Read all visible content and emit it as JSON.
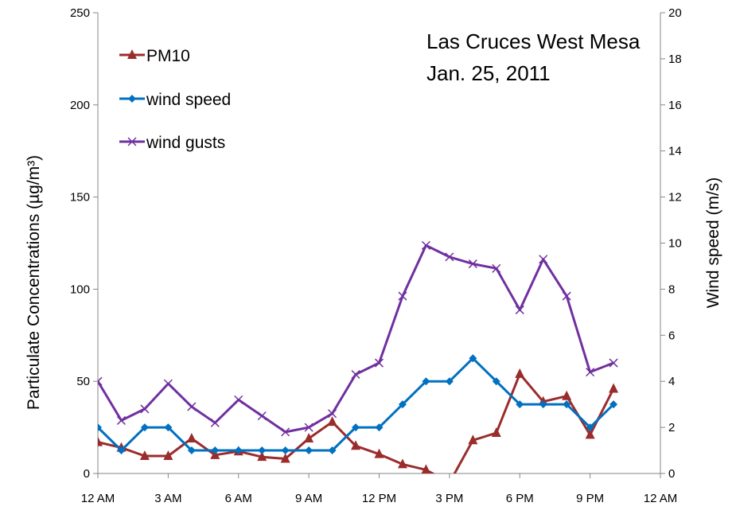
{
  "chart_data": {
    "type": "line",
    "title_lines": [
      "Las Cruces West Mesa",
      "Jan. 25, 2011"
    ],
    "ylabel": "Particulate Concentrations (µg/m³)",
    "y2label": "Wind speed (m/s)",
    "xlabel": "",
    "x_tick_labels": [
      "12 AM",
      "3 AM",
      "6 AM",
      "9 AM",
      "12 PM",
      "3 PM",
      "6 PM",
      "9 PM",
      "12 AM"
    ],
    "x": [
      0,
      1,
      2,
      3,
      4,
      5,
      6,
      7,
      8,
      9,
      10,
      11,
      12,
      13,
      14,
      15,
      16,
      17,
      18,
      19,
      20,
      21,
      22
    ],
    "xlim": [
      0,
      24
    ],
    "ylim": [
      0,
      250
    ],
    "y_ticks": [
      0,
      50,
      100,
      150,
      200,
      250
    ],
    "y2lim": [
      0,
      20
    ],
    "y2_ticks": [
      0,
      2,
      4,
      6,
      8,
      10,
      12,
      14,
      16,
      18,
      20
    ],
    "legend_position": "top-left",
    "series": [
      {
        "name": "PM10",
        "axis": "left",
        "color": "#9B2C2C",
        "marker": "triangle",
        "values": [
          17,
          14,
          9.5,
          9.5,
          19,
          10,
          12,
          9,
          8,
          19,
          28,
          15,
          10.5,
          5,
          2,
          -5,
          18,
          22,
          54,
          39,
          42,
          21,
          46
        ]
      },
      {
        "name": "wind speed",
        "axis": "right",
        "color": "#0070C0",
        "marker": "diamond",
        "values": [
          2,
          1,
          2,
          2,
          1,
          1,
          1,
          1,
          1,
          1,
          1,
          2,
          2,
          3,
          4,
          4,
          5,
          4,
          3,
          3,
          3,
          2,
          3
        ]
      },
      {
        "name": "wind gusts",
        "axis": "right",
        "color": "#7030A0",
        "marker": "x",
        "values": [
          4,
          2.3,
          2.8,
          3.9,
          2.9,
          2.2,
          3.2,
          2.5,
          1.8,
          2,
          2.6,
          4.3,
          4.8,
          7.7,
          9.9,
          9.4,
          9.1,
          8.9,
          7.1,
          9.3,
          7.7,
          4.4,
          4.8
        ]
      }
    ]
  }
}
